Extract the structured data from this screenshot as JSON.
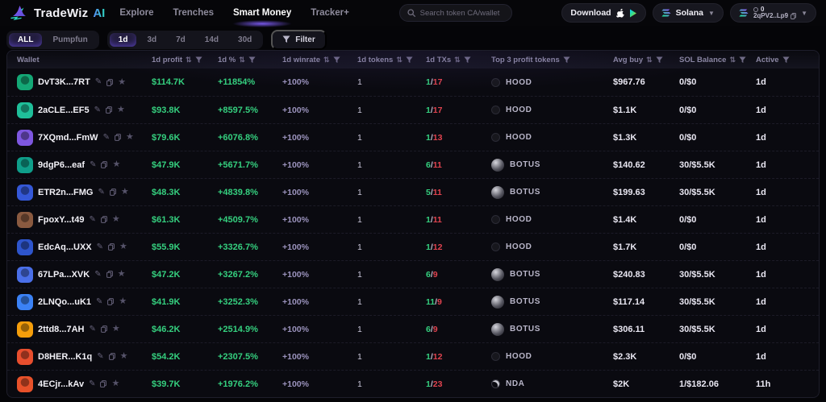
{
  "header": {
    "logo": {
      "name": "TradeWiz",
      "suffix": "AI"
    },
    "nav": [
      {
        "label": "Explore",
        "active": false
      },
      {
        "label": "Trenches",
        "active": false
      },
      {
        "label": "Smart Money",
        "active": true
      },
      {
        "label": "Tracker+",
        "active": false
      }
    ],
    "search": {
      "placeholder": "Search token CA/wallet"
    },
    "download_label": "Download",
    "network": {
      "label": "Solana"
    },
    "wallet": {
      "balance": "0",
      "address": "2qPV2..Lp9"
    }
  },
  "filters": {
    "source_tabs": [
      {
        "label": "ALL",
        "active": true
      },
      {
        "label": "Pumpfun",
        "active": false
      }
    ],
    "period_tabs": [
      {
        "label": "1d",
        "active": true
      },
      {
        "label": "3d",
        "active": false
      },
      {
        "label": "7d",
        "active": false
      },
      {
        "label": "14d",
        "active": false
      },
      {
        "label": "30d",
        "active": false
      }
    ],
    "filter_button_label": "Filter"
  },
  "table": {
    "columns": [
      {
        "label": "Wallet",
        "sort": false,
        "filter": false
      },
      {
        "label": "1d profit",
        "sort": true,
        "filter": true
      },
      {
        "label": "1d %",
        "sort": true,
        "filter": true
      },
      {
        "label": "1d winrate",
        "sort": true,
        "filter": true
      },
      {
        "label": "1d tokens",
        "sort": true,
        "filter": true
      },
      {
        "label": "1d TXs",
        "sort": true,
        "filter": true
      },
      {
        "label": "Top 3 profit tokens",
        "sort": false,
        "filter": true
      },
      {
        "label": "Avg buy",
        "sort": true,
        "filter": true
      },
      {
        "label": "SOL Balance",
        "sort": true,
        "filter": true
      },
      {
        "label": "Active",
        "sort": false,
        "filter": true
      }
    ],
    "rows": [
      {
        "wallet": "DvT3K...7RT",
        "avatar_color": "#14a876",
        "profit": "$114.7K",
        "pct": "+11854%",
        "winrate": "+100%",
        "tokens": "1",
        "tx_win": "1",
        "tx_total": "17",
        "token": "HOOD",
        "token_style": "hood",
        "avg_buy": "$967.76",
        "sol_balance": "0/$0",
        "active": "1d"
      },
      {
        "wallet": "2aCLE...EF5",
        "avatar_color": "#1fbf9a",
        "profit": "$93.8K",
        "pct": "+8597.5%",
        "winrate": "+100%",
        "tokens": "1",
        "tx_win": "1",
        "tx_total": "17",
        "token": "HOOD",
        "token_style": "hood",
        "avg_buy": "$1.1K",
        "sol_balance": "0/$0",
        "active": "1d"
      },
      {
        "wallet": "7XQmd...FmW",
        "avatar_color": "#7e57e0",
        "profit": "$79.6K",
        "pct": "+6076.8%",
        "winrate": "+100%",
        "tokens": "1",
        "tx_win": "1",
        "tx_total": "13",
        "token": "HOOD",
        "token_style": "hood",
        "avg_buy": "$1.3K",
        "sol_balance": "0/$0",
        "active": "1d"
      },
      {
        "wallet": "9dgP6...eaf",
        "avatar_color": "#0f9e8a",
        "profit": "$47.9K",
        "pct": "+5671.7%",
        "winrate": "+100%",
        "tokens": "1",
        "tx_win": "6",
        "tx_total": "11",
        "token": "BOTUS",
        "token_style": "botus",
        "avg_buy": "$140.62",
        "sol_balance": "30/$5.5K",
        "active": "1d"
      },
      {
        "wallet": "ETR2n...FMG",
        "avatar_color": "#3558d8",
        "profit": "$48.3K",
        "pct": "+4839.8%",
        "winrate": "+100%",
        "tokens": "1",
        "tx_win": "5",
        "tx_total": "11",
        "token": "BOTUS",
        "token_style": "botus",
        "avg_buy": "$199.63",
        "sol_balance": "30/$5.5K",
        "active": "1d"
      },
      {
        "wallet": "FpoxY...t49",
        "avatar_color": "#8a5a40",
        "profit": "$61.3K",
        "pct": "+4509.7%",
        "winrate": "+100%",
        "tokens": "1",
        "tx_win": "1",
        "tx_total": "11",
        "token": "HOOD",
        "token_style": "hood",
        "avg_buy": "$1.4K",
        "sol_balance": "0/$0",
        "active": "1d"
      },
      {
        "wallet": "EdcAq...UXX",
        "avatar_color": "#2e55cc",
        "profit": "$55.9K",
        "pct": "+3326.7%",
        "winrate": "+100%",
        "tokens": "1",
        "tx_win": "1",
        "tx_total": "12",
        "token": "HOOD",
        "token_style": "hood",
        "avg_buy": "$1.7K",
        "sol_balance": "0/$0",
        "active": "1d"
      },
      {
        "wallet": "67LPa...XVK",
        "avatar_color": "#4a6fe8",
        "profit": "$47.2K",
        "pct": "+3267.2%",
        "winrate": "+100%",
        "tokens": "1",
        "tx_win": "6",
        "tx_total": "9",
        "token": "BOTUS",
        "token_style": "botus",
        "avg_buy": "$240.83",
        "sol_balance": "30/$5.5K",
        "active": "1d"
      },
      {
        "wallet": "2LNQo...uK1",
        "avatar_color": "#3b82f6",
        "profit": "$41.9K",
        "pct": "+3252.3%",
        "winrate": "+100%",
        "tokens": "1",
        "tx_win": "11",
        "tx_total": "9",
        "token": "BOTUS",
        "token_style": "botus",
        "avg_buy": "$117.14",
        "sol_balance": "30/$5.5K",
        "active": "1d"
      },
      {
        "wallet": "2ttd8...7AH",
        "avatar_color": "#f59e0b",
        "profit": "$46.2K",
        "pct": "+2514.9%",
        "winrate": "+100%",
        "tokens": "1",
        "tx_win": "6",
        "tx_total": "9",
        "token": "BOTUS",
        "token_style": "botus",
        "avg_buy": "$306.11",
        "sol_balance": "30/$5.5K",
        "active": "1d"
      },
      {
        "wallet": "D8HER...K1q",
        "avatar_color": "#e84e2e",
        "profit": "$54.2K",
        "pct": "+2307.5%",
        "winrate": "+100%",
        "tokens": "1",
        "tx_win": "1",
        "tx_total": "12",
        "token": "HOOD",
        "token_style": "hood",
        "avg_buy": "$2.3K",
        "sol_balance": "0/$0",
        "active": "1d"
      },
      {
        "wallet": "4ECjr...kAv",
        "avatar_color": "#e8512a",
        "profit": "$39.7K",
        "pct": "+1976.2%",
        "winrate": "+100%",
        "tokens": "1",
        "tx_win": "1",
        "tx_total": "23",
        "token": "NDA",
        "token_style": "nda",
        "avg_buy": "$2K",
        "sol_balance": "1/$182.06",
        "active": "11h"
      }
    ]
  },
  "colors": {
    "accent_purple": "#7c5cff",
    "positive_green": "#35d07f",
    "negative_red": "#e0434f",
    "background": "#050508"
  }
}
